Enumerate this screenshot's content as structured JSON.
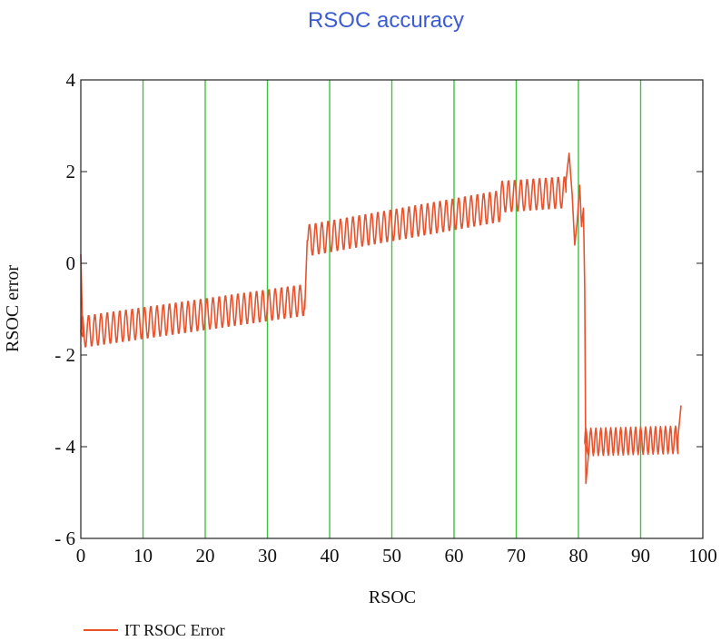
{
  "chart_data": {
    "type": "line",
    "title": "RSOC accuracy",
    "xlabel": "RSOC",
    "ylabel": "RSOC error",
    "xlim": [
      0,
      100
    ],
    "ylim": [
      -6,
      4
    ],
    "x_ticks": [
      "0",
      "10",
      "20",
      "30",
      "40",
      "50",
      "60",
      "70",
      "80",
      "90",
      "100"
    ],
    "y_ticks": [
      "4",
      "2",
      "0",
      "- 2",
      "- 4",
      "- 6"
    ],
    "grid": "vertical",
    "legend_position": "bottom-left",
    "colors": {
      "series": "#e8522d",
      "grid": "#3fc43f",
      "title": "#3d5bd1"
    },
    "series": [
      {
        "name": "IT RSOC Error",
        "segments": [
          {
            "x_start": 0,
            "x_end": 36,
            "y_start": -1.5,
            "y_end": -0.8,
            "amplitude": 0.35,
            "period": 1.0
          },
          {
            "x_start": 36.5,
            "x_end": 67.5,
            "y_start": 0.5,
            "y_end": 1.25,
            "amplitude": 0.35,
            "period": 1.0
          },
          {
            "x_start": 67.5,
            "x_end": 78,
            "y_start": 1.45,
            "y_end": 1.55,
            "amplitude": 0.35,
            "period": 1.0
          },
          {
            "x_start": 81,
            "x_end": 96,
            "y_start": -3.9,
            "y_end": -3.85,
            "amplitude": 0.3,
            "period": 0.8
          }
        ],
        "points": [
          [
            0,
            0.2
          ],
          [
            0.3,
            -1.6
          ],
          [
            36,
            -1.0
          ],
          [
            36.4,
            0.5
          ],
          [
            78,
            1.8
          ],
          [
            78.5,
            2.4
          ],
          [
            79,
            1.5
          ],
          [
            79.4,
            0.4
          ],
          [
            79.8,
            0.9
          ],
          [
            80.2,
            1.7
          ],
          [
            80.5,
            0.8
          ],
          [
            80.8,
            1.2
          ],
          [
            81.0,
            -0.5
          ],
          [
            81.2,
            -4.8
          ],
          [
            81.6,
            -4.2
          ],
          [
            96,
            -3.8
          ],
          [
            96.5,
            -3.1
          ]
        ]
      }
    ]
  }
}
